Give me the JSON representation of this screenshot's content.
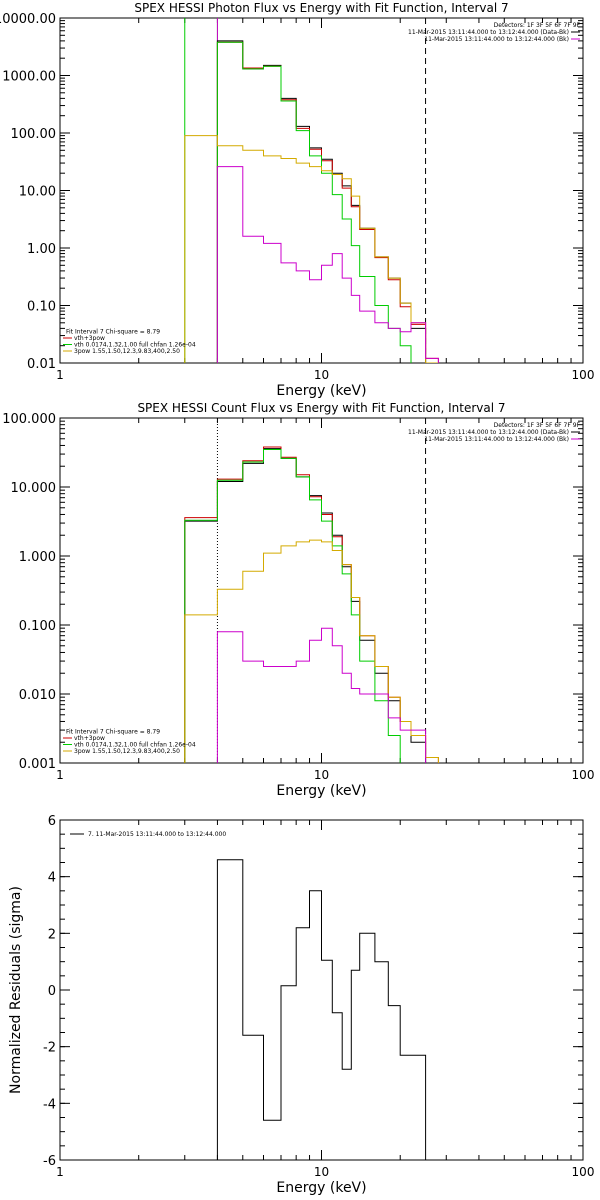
{
  "chart_data": [
    {
      "type": "line",
      "title": "SPEX HESSI Photon Flux vs Energy with Fit Function, Interval 7",
      "xlabel": "Energy (keV)",
      "ylabel": "",
      "xscale": "log",
      "yscale": "log",
      "xlim": [
        1,
        100
      ],
      "ylim": [
        0.01,
        10000
      ],
      "x_ticks": [
        {
          "value": 1,
          "label": "1"
        },
        {
          "value": 10,
          "label": "10"
        },
        {
          "value": 100,
          "label": "100"
        }
      ],
      "y_ticks": [
        {
          "value": 10000,
          "label": "10000.00"
        },
        {
          "value": 1000,
          "label": "1000.00"
        },
        {
          "value": 100,
          "label": "100.00"
        },
        {
          "value": 10,
          "label": "10.00"
        },
        {
          "value": 1,
          "label": "1.00"
        },
        {
          "value": 0.1,
          "label": "0.10"
        },
        {
          "value": 0.01,
          "label": "0.01"
        }
      ],
      "legend_topright": [
        {
          "text": "Detectors: 1F 3F 5F 6F 7F 9F",
          "color": null
        },
        {
          "text": "11-Mar-2015 13:11:44.000 to 13:12:44.000 (Data-Bk)",
          "color": "#000000"
        },
        {
          "text": "11-Mar-2015 13:11:44.000 to 13:12:44.000 (Bk)",
          "color": "#cc00cc"
        }
      ],
      "legend_bottomleft": [
        {
          "text": "Fit Interval 7   Chi-square = 8.79",
          "color": null
        },
        {
          "text": "vth+3pow",
          "color": "#cc0000"
        },
        {
          "text": "vth 0.0174,1.32,1.00  full chfan 1.26e-04",
          "color": "#00cc00"
        },
        {
          "text": "3pow 1.55,1.50,12.3,9.83,400,2.50",
          "color": "#d4aa00"
        }
      ],
      "vlines": [
        {
          "x": 3.0,
          "style": "solid",
          "color": "#00cc00"
        },
        {
          "x": 4.0,
          "style": "solid",
          "color": "#00cc00"
        },
        {
          "x": 4.0,
          "style": "solid",
          "color": "#cc00cc"
        },
        {
          "x": 25.0,
          "style": "dashed",
          "color": "#000000"
        }
      ],
      "edges": [
        3.0,
        4.0,
        5.0,
        6.0,
        7.0,
        8.0,
        9.0,
        10.0,
        11.0,
        12.0,
        13.0,
        14.0,
        16.0,
        18.0,
        20.0,
        22.0,
        25.0,
        28.0,
        31.0
      ],
      "series": [
        {
          "name": "Data-Bk",
          "color": "#000000",
          "style": "step",
          "values": [
            null,
            4000,
            1300,
            1500,
            400,
            130,
            55,
            35,
            20,
            12,
            5.5,
            2.2,
            0.7,
            0.3,
            0.11,
            0.04,
            null,
            null
          ]
        },
        {
          "name": "vth+3pow",
          "color": "#cc0000",
          "style": "step",
          "values": [
            null,
            3800,
            1350,
            1450,
            380,
            120,
            52,
            33,
            19,
            11,
            5.2,
            2.1,
            0.68,
            0.28,
            0.095,
            0.047,
            0.012,
            null
          ]
        },
        {
          "name": "vth",
          "color": "#00cc00",
          "style": "step",
          "values": [
            null,
            3800,
            1300,
            1450,
            360,
            110,
            40,
            20,
            8.5,
            3.2,
            1.1,
            0.32,
            0.1,
            0.04,
            0.02,
            null,
            null,
            null
          ]
        },
        {
          "name": "3pow",
          "color": "#d4aa00",
          "style": "step",
          "values": [
            90,
            60,
            50,
            40,
            36,
            30,
            26,
            22,
            19,
            16,
            8,
            2.2,
            0.7,
            0.3,
            0.11,
            0.05,
            0.01,
            null
          ]
        },
        {
          "name": "Bk",
          "color": "#cc00cc",
          "style": "step",
          "values": [
            null,
            26,
            1.6,
            1.2,
            0.55,
            0.4,
            0.28,
            0.5,
            0.8,
            0.3,
            0.15,
            0.08,
            0.05,
            0.04,
            0.035,
            0.05,
            0.012,
            null
          ]
        }
      ]
    },
    {
      "type": "line",
      "title": "SPEX HESSI Count Flux vs Energy with Fit Function, Interval 7",
      "xlabel": "Energy (keV)",
      "ylabel": "",
      "xscale": "log",
      "yscale": "log",
      "xlim": [
        1,
        100
      ],
      "ylim": [
        0.001,
        100
      ],
      "x_ticks": [
        {
          "value": 1,
          "label": "1"
        },
        {
          "value": 10,
          "label": "10"
        },
        {
          "value": 100,
          "label": "100"
        }
      ],
      "y_ticks": [
        {
          "value": 100,
          "label": "100.000"
        },
        {
          "value": 10,
          "label": "10.000"
        },
        {
          "value": 1,
          "label": "1.000"
        },
        {
          "value": 0.1,
          "label": "0.100"
        },
        {
          "value": 0.01,
          "label": "0.010"
        },
        {
          "value": 0.001,
          "label": "0.001"
        }
      ],
      "legend_topright": [
        {
          "text": "Detectors: 1F 3F 5F 6F 7F 9F",
          "color": null
        },
        {
          "text": "11-Mar-2015 13:11:44.000 to 13:12:44.000 (Data-Bk)",
          "color": "#000000"
        },
        {
          "text": "11-Mar-2015 13:11:44.000 to 13:12:44.000 (Bk)",
          "color": "#cc00cc"
        }
      ],
      "legend_bottomleft": [
        {
          "text": "Fit Interval 7   Chi-square = 8.79",
          "color": null
        },
        {
          "text": "vth+3pow",
          "color": "#cc0000"
        },
        {
          "text": "vth 0.0174,1.32,1.00  full chfan 1.26e-04",
          "color": "#00cc00"
        },
        {
          "text": "3pow 1.55,1.50,12.3,9.83,400,2.50",
          "color": "#d4aa00"
        }
      ],
      "vlines": [
        {
          "x": 4.0,
          "style": "dotted",
          "color": "#000000"
        },
        {
          "x": 25.0,
          "style": "dashed",
          "color": "#000000"
        }
      ],
      "edges": [
        3.0,
        4.0,
        5.0,
        6.0,
        7.0,
        8.0,
        9.0,
        10.0,
        11.0,
        12.0,
        13.0,
        14.0,
        16.0,
        18.0,
        20.0,
        22.0,
        25.0,
        28.0,
        31.0
      ],
      "series": [
        {
          "name": "Data-Bk",
          "color": "#000000",
          "style": "step",
          "values": [
            3.2,
            12,
            22,
            36,
            26,
            14,
            7.5,
            4.2,
            2.0,
            0.7,
            0.22,
            0.06,
            0.02,
            0.008,
            0.004,
            0.002,
            0.001,
            null
          ]
        },
        {
          "name": "vth+3pow",
          "color": "#cc0000",
          "style": "step",
          "values": [
            3.6,
            13,
            24,
            38,
            27,
            15,
            7.2,
            4.0,
            1.9,
            0.75,
            0.25,
            0.07,
            0.025,
            0.009,
            0.004,
            0.0025,
            0.0012,
            null
          ]
        },
        {
          "name": "vth",
          "color": "#00cc00",
          "style": "step",
          "values": [
            3.3,
            12.5,
            23,
            35,
            26,
            14,
            6.5,
            3.2,
            1.4,
            0.55,
            0.14,
            0.03,
            0.008,
            0.0025,
            null,
            null,
            null,
            null
          ]
        },
        {
          "name": "3pow",
          "color": "#d4aa00",
          "style": "step",
          "values": [
            0.14,
            0.33,
            0.6,
            1.1,
            1.4,
            1.6,
            1.7,
            1.6,
            1.2,
            0.75,
            0.25,
            0.07,
            0.025,
            0.009,
            0.004,
            0.0025,
            0.0012,
            null
          ]
        },
        {
          "name": "Bk",
          "color": "#cc00cc",
          "style": "step",
          "values": [
            null,
            0.08,
            0.03,
            0.025,
            0.025,
            0.03,
            0.06,
            0.09,
            0.05,
            0.02,
            0.012,
            0.01,
            0.01,
            0.0045,
            0.003,
            0.003,
            null,
            null
          ]
        }
      ]
    },
    {
      "type": "line",
      "title": "",
      "xlabel": "Energy (keV)",
      "ylabel": "Normalized Residuals (sigma)",
      "xscale": "log",
      "yscale": "linear",
      "xlim": [
        1,
        100
      ],
      "ylim": [
        -6,
        6
      ],
      "x_ticks": [
        {
          "value": 1,
          "label": "1"
        },
        {
          "value": 10,
          "label": "10"
        },
        {
          "value": 100,
          "label": "100"
        }
      ],
      "y_ticks": [
        {
          "value": 6,
          "label": "6"
        },
        {
          "value": 4,
          "label": "4"
        },
        {
          "value": 2,
          "label": "2"
        },
        {
          "value": 0,
          "label": "0"
        },
        {
          "value": -2,
          "label": "-2"
        },
        {
          "value": -4,
          "label": "-4"
        },
        {
          "value": -6,
          "label": "-6"
        }
      ],
      "legend_topleft": [
        {
          "text": "7. 11-Mar-2015 13:11:44.000 to 13:12:44.000",
          "color": "#000000"
        }
      ],
      "edges": [
        4.0,
        5.0,
        6.0,
        7.0,
        8.0,
        9.0,
        10.0,
        11.0,
        12.0,
        13.0,
        14.0,
        16.0,
        18.0,
        20.0,
        22.0,
        25.0
      ],
      "series": [
        {
          "name": "",
          "color": "#000000",
          "style": "step",
          "values": [
            4.6,
            -1.6,
            -4.6,
            0.15,
            2.2,
            3.5,
            1.05,
            -0.8,
            -2.8,
            0.7,
            2.0,
            1.0,
            -0.55,
            -2.3,
            -2.3
          ]
        }
      ]
    }
  ]
}
